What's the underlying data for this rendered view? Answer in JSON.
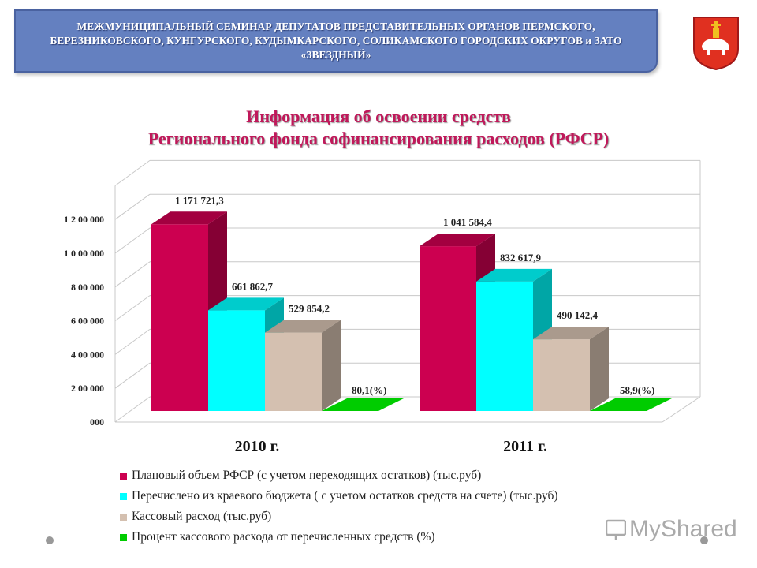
{
  "header": {
    "banner_text": "МЕЖМУНИЦИПАЛЬНЫЙ СЕМИНАР ДЕПУТАТОВ ПРЕДСТАВИТЕЛЬНЫХ ОРГАНОВ ПЕРМСКОГО, БЕРЕЗНИКОВСКОГО, КУНГУРСКОГО, КУДЫМКАРСКОГО, СОЛИКАМСКОГО ГОРОДСКИХ ОКРУГОВ и ЗАТО «ЗВЕЗДНЫЙ»"
  },
  "chart_data": {
    "type": "bar",
    "title": "Информация об освоении средств",
    "subtitle": "Регионального фонда софинансирования расходов (РФСР)",
    "categories": [
      "2010 г.",
      "2011 г."
    ],
    "y_ticks": [
      "000",
      "2 00 000",
      "4 00 000",
      "6 00 000",
      "8 00 000",
      "1 0 00 000",
      "1 2 00 000"
    ],
    "y_tick_values": [
      0,
      200000,
      400000,
      600000,
      800000,
      1000000,
      1200000
    ],
    "ylim": [
      0,
      1400000
    ],
    "grid": true,
    "legend_position": "bottom",
    "series": [
      {
        "name": "Плановый объем РФСР (с учетом переходящих остатков) (тыс.руб)",
        "values": [
          1171721.3,
          1041584.4
        ],
        "labels": [
          "1 171 721,3",
          "1 041 584,4"
        ],
        "color": "#cc0050"
      },
      {
        "name": "Перечислено из краевого бюджета ( с учетом остатков средств на счете) (тыс.руб)",
        "values": [
          661862.7,
          832617.9
        ],
        "labels": [
          "661 862,7",
          "832 617,9"
        ],
        "color": "#00ffff"
      },
      {
        "name": "Кассовый расход (тыс.руб)",
        "values": [
          529854.2,
          490142.4
        ],
        "labels": [
          "529 854,2",
          "490 142,4"
        ],
        "color": "#d4c0b0"
      },
      {
        "name": "Процент кассового расхода от перечисленных средств (%)",
        "values": [
          80.1,
          58.9
        ],
        "labels": [
          "80,1(%)",
          "58,9(%)"
        ],
        "color": "#00cc00"
      }
    ]
  },
  "watermark": {
    "text": "MyShared"
  }
}
